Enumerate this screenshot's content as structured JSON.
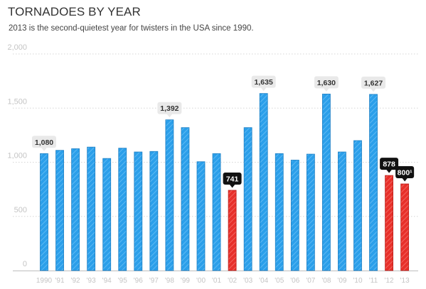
{
  "title": "TORNADOES BY YEAR",
  "subtitle": "2013 is the second-quietest year for twisters in the USA since 1990.",
  "colors": {
    "normal": "#2b9fea",
    "highlight": "#e8302a",
    "grid": "#d6d6d6",
    "tick": "#c4c4c4",
    "callout_light": "#e9e9e9",
    "callout_dark": "#111111"
  },
  "chart_data": {
    "type": "bar",
    "title": "TORNADOES BY YEAR",
    "subtitle": "2013 is the second-quietest year for twisters in the USA since 1990.",
    "xlabel": "",
    "ylabel": "",
    "ylim": [
      0,
      2000
    ],
    "yticks": [
      "0",
      "500",
      "1,000",
      "1,500",
      "2,000"
    ],
    "ytick_values": [
      0,
      500,
      1000,
      1500,
      2000
    ],
    "grid": true,
    "categories": [
      "1990",
      "'91",
      "'92",
      "'93",
      "'94",
      "'95",
      "'96",
      "'97",
      "'98",
      "'99",
      "'00",
      "'01",
      "'02",
      "'03",
      "'04",
      "'05",
      "'06",
      "'07",
      "'08",
      "'09",
      "'10",
      "'11",
      "'12",
      "'13"
    ],
    "values": [
      1080,
      1110,
      1125,
      1140,
      1035,
      1130,
      1095,
      1100,
      1392,
      1320,
      1005,
      1080,
      741,
      1320,
      1635,
      1080,
      1020,
      1075,
      1630,
      1095,
      1200,
      1627,
      878,
      800
    ],
    "highlight": [
      false,
      false,
      false,
      false,
      false,
      false,
      false,
      false,
      false,
      false,
      false,
      false,
      true,
      false,
      false,
      false,
      false,
      false,
      false,
      false,
      false,
      false,
      true,
      true
    ],
    "annotations": [
      {
        "index": 0,
        "label": "1,080",
        "style": "light"
      },
      {
        "index": 8,
        "label": "1,392",
        "style": "light"
      },
      {
        "index": 12,
        "label": "741",
        "style": "dark"
      },
      {
        "index": 14,
        "label": "1,635",
        "style": "light"
      },
      {
        "index": 18,
        "label": "1,630",
        "style": "light"
      },
      {
        "index": 21,
        "label": "1,627",
        "style": "light"
      },
      {
        "index": 22,
        "label": "878",
        "style": "dark"
      },
      {
        "index": 23,
        "label": "800¹",
        "style": "dark"
      }
    ]
  }
}
